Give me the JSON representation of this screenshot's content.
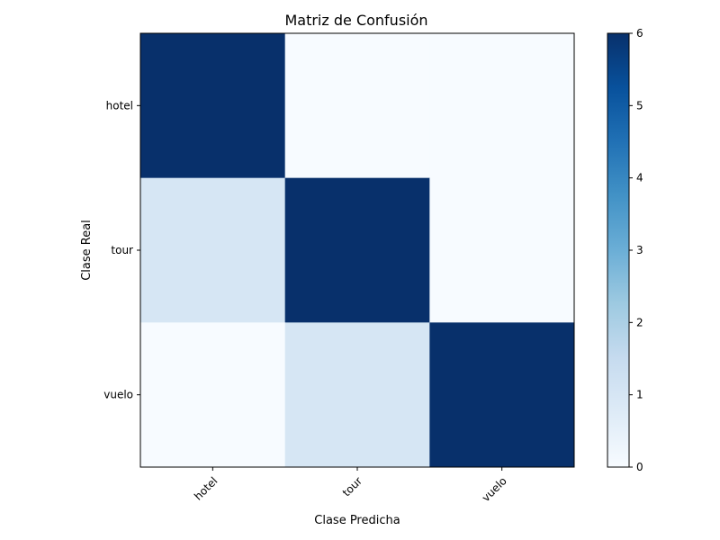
{
  "chart_data": {
    "type": "heatmap",
    "title": "Matriz de Confusión",
    "xlabel": "Clase Predicha",
    "ylabel": "Clase Real",
    "x_categories": [
      "hotel",
      "tour",
      "vuelo"
    ],
    "y_categories": [
      "hotel",
      "tour",
      "vuelo"
    ],
    "values": [
      [
        6,
        0,
        0
      ],
      [
        1,
        6,
        0
      ],
      [
        0,
        1,
        6
      ]
    ],
    "colorscale": "Blues",
    "color_range": [
      0,
      6
    ],
    "colorbar_ticks": [
      "0",
      "1",
      "2",
      "3",
      "4",
      "5",
      "6"
    ],
    "colors": {
      "low": "#f7fbff",
      "high": "#08306b"
    }
  }
}
